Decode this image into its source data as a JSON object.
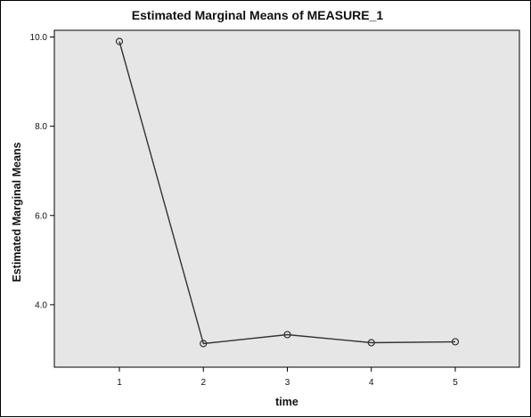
{
  "chart_data": {
    "type": "line",
    "title": "Estimated Marginal Means of MEASURE_1",
    "xlabel": "time",
    "ylabel": "Estimated Marginal Means",
    "categories": [
      "1",
      "2",
      "3",
      "4",
      "5"
    ],
    "x_ticks": [
      "1",
      "2",
      "3",
      "4",
      "5"
    ],
    "y_ticks": [
      "4.0",
      "6.0",
      "8.0",
      "10.0"
    ],
    "y_tick_values": [
      4.0,
      6.0,
      8.0,
      10.0
    ],
    "ylim": [
      2.6,
      10.15
    ],
    "series": [
      {
        "values": [
          9.9,
          3.13,
          3.33,
          3.15,
          3.17
        ]
      }
    ],
    "marker": "open-circle",
    "grid": false,
    "legend": "none",
    "colors": {
      "plot_background": "#e6e6e6",
      "line": "#333333",
      "axis": "#000000"
    }
  }
}
